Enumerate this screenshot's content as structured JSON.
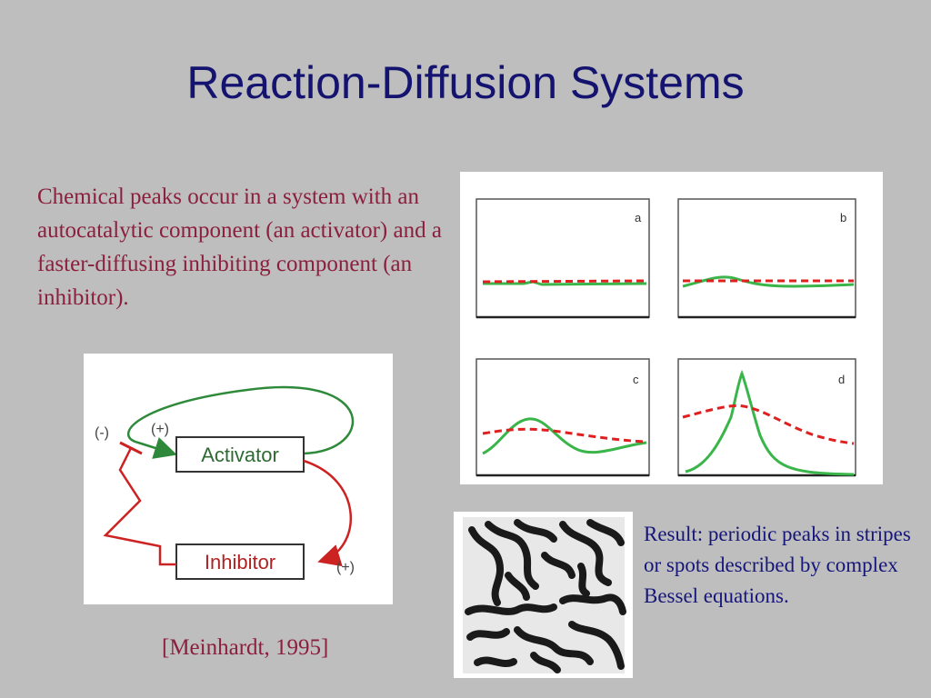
{
  "slide": {
    "title": "Reaction-Diffusion Systems",
    "intro": " Chemical peaks occur in a system with an autocatalytic component (an activator) and a faster-diffusing inhibiting component (an inhibitor).",
    "citation": "[Meinhardt, 1995]",
    "result": "Result: periodic peaks in stripes or spots described by complex Bessel equations."
  },
  "diagram": {
    "activator_label": "Activator",
    "inhibitor_label": "Inhibitor",
    "neg_sign": "(-)",
    "pos_sign_activator": "(+)",
    "pos_sign_inhibitor": "(+)",
    "colors": {
      "activation_loop": "#2e8a3a",
      "inhibitor_path": "#cc2222"
    }
  },
  "plots": {
    "panel_labels": [
      "a",
      "b",
      "c",
      "d"
    ],
    "colors": {
      "activator": "#3ab54a",
      "inhibitor": "#e02020"
    }
  }
}
